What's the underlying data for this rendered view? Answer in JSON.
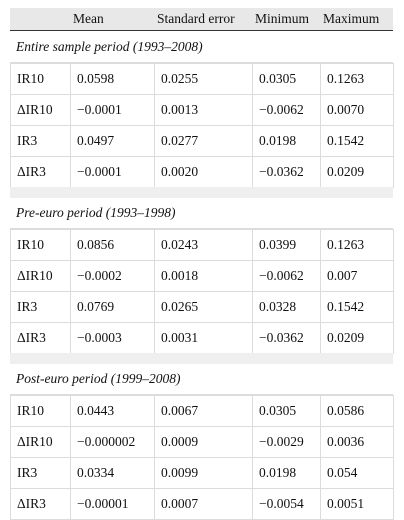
{
  "header": {
    "columns": [
      "Mean",
      "Standard error",
      "Minimum",
      "Maximum"
    ]
  },
  "sections": [
    {
      "title": "Entire sample period (1993–2008)",
      "rows": [
        [
          "IR10",
          "0.0598",
          "0.0255",
          "0.0305",
          "0.1263"
        ],
        [
          "ΔIR10",
          "−0.0001",
          "0.0013",
          "−0.0062",
          "0.0070"
        ],
        [
          "IR3",
          "0.0497",
          "0.0277",
          "0.0198",
          "0.1542"
        ],
        [
          "ΔIR3",
          "−0.0001",
          "0.0020",
          "−0.0362",
          "0.0209"
        ]
      ]
    },
    {
      "title": "Pre-euro period (1993–1998)",
      "rows": [
        [
          "IR10",
          "0.0856",
          "0.0243",
          "0.0399",
          "0.1263"
        ],
        [
          "ΔIR10",
          "−0.0002",
          "0.0018",
          "−0.0062",
          "0.007"
        ],
        [
          "IR3",
          "0.0769",
          "0.0265",
          "0.0328",
          "0.1542"
        ],
        [
          "ΔIR3",
          "−0.0003",
          "0.0031",
          "−0.0362",
          "0.0209"
        ]
      ]
    },
    {
      "title": "Post-euro period (1999–2008)",
      "rows": [
        [
          "IR10",
          "0.0443",
          "0.0067",
          "0.0305",
          "0.0586"
        ],
        [
          "ΔIR10",
          "−0.000002",
          "0.0009",
          "−0.0029",
          "0.0036"
        ],
        [
          "IR3",
          "0.0334",
          "0.0099",
          "0.0198",
          "0.054"
        ],
        [
          "ΔIR3",
          "−0.00001",
          "0.0007",
          "−0.0054",
          "0.0051"
        ]
      ]
    }
  ]
}
